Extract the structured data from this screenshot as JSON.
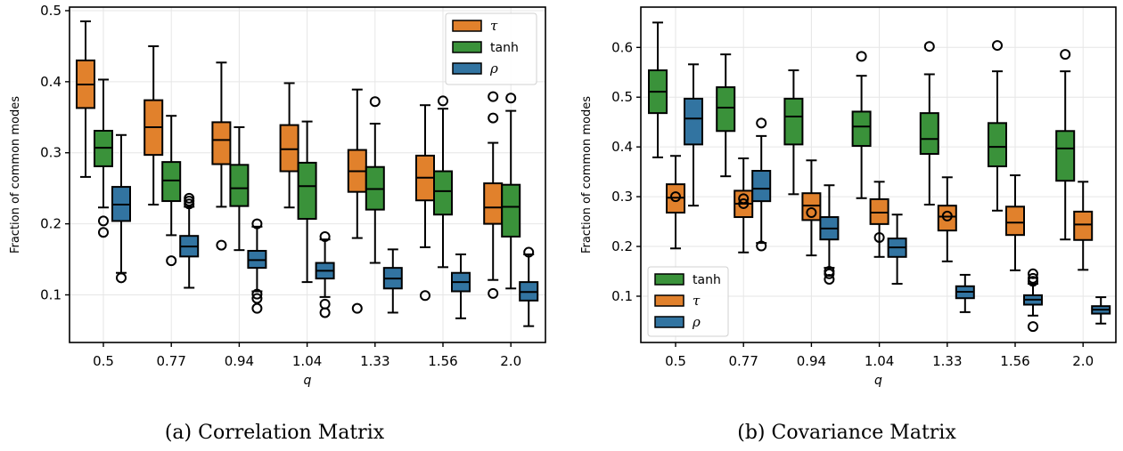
{
  "colors": {
    "tau": "#e1812c",
    "tanh": "#3a923a",
    "rho": "#3274a1",
    "grid": "#e6e6e6"
  },
  "chart_data": [
    {
      "type": "box",
      "title": "",
      "caption": "(a) Correlation Matrix",
      "xlabel": "q",
      "ylabel": "Fraction of common modes",
      "categories": [
        "0.5",
        "0.77",
        "0.94",
        "1.04",
        "1.33",
        "1.56",
        "2.0"
      ],
      "ylim": [
        0.033,
        0.505
      ],
      "yticks": [
        0.1,
        0.2,
        0.3,
        0.4,
        0.5
      ],
      "ytick_labels": [
        "0.1",
        "0.2",
        "0.3",
        "0.4",
        "0.5"
      ],
      "grid": true,
      "legend": {
        "placement": "top-right",
        "entries": [
          {
            "key": "tau",
            "label": "τ",
            "symbol": true
          },
          {
            "key": "tanh",
            "label": "tanh",
            "symbol": false
          },
          {
            "key": "rho",
            "label": "ρ",
            "symbol": true
          }
        ]
      },
      "series_order": [
        "tau",
        "tanh",
        "rho"
      ],
      "series": [
        {
          "name": "tau",
          "boxes": [
            {
              "whislo": 0.266,
              "q1": 0.363,
              "med": 0.396,
              "q3": 0.43,
              "whishi": 0.485,
              "fliers": []
            },
            {
              "whislo": 0.227,
              "q1": 0.297,
              "med": 0.336,
              "q3": 0.374,
              "whishi": 0.45,
              "fliers": []
            },
            {
              "whislo": 0.224,
              "q1": 0.284,
              "med": 0.318,
              "q3": 0.343,
              "whishi": 0.427,
              "fliers": [
                0.17
              ]
            },
            {
              "whislo": 0.223,
              "q1": 0.274,
              "med": 0.305,
              "q3": 0.339,
              "whishi": 0.398,
              "fliers": []
            },
            {
              "whislo": 0.18,
              "q1": 0.245,
              "med": 0.274,
              "q3": 0.304,
              "whishi": 0.389,
              "fliers": [
                0.081
              ]
            },
            {
              "whislo": 0.167,
              "q1": 0.233,
              "med": 0.265,
              "q3": 0.296,
              "whishi": 0.367,
              "fliers": [
                0.099
              ]
            },
            {
              "whislo": 0.121,
              "q1": 0.2,
              "med": 0.223,
              "q3": 0.257,
              "whishi": 0.314,
              "fliers": [
                0.379,
                0.349,
                0.102
              ]
            }
          ]
        },
        {
          "name": "tanh",
          "boxes": [
            {
              "whislo": 0.223,
              "q1": 0.281,
              "med": 0.307,
              "q3": 0.331,
              "whishi": 0.403,
              "fliers": [
                0.204,
                0.188
              ]
            },
            {
              "whislo": 0.184,
              "q1": 0.232,
              "med": 0.261,
              "q3": 0.287,
              "whishi": 0.352,
              "fliers": [
                0.148
              ]
            },
            {
              "whislo": 0.163,
              "q1": 0.225,
              "med": 0.25,
              "q3": 0.283,
              "whishi": 0.336,
              "fliers": []
            },
            {
              "whislo": 0.118,
              "q1": 0.207,
              "med": 0.253,
              "q3": 0.286,
              "whishi": 0.344,
              "fliers": []
            },
            {
              "whislo": 0.145,
              "q1": 0.22,
              "med": 0.249,
              "q3": 0.28,
              "whishi": 0.341,
              "fliers": [
                0.372
              ]
            },
            {
              "whislo": 0.139,
              "q1": 0.213,
              "med": 0.246,
              "q3": 0.274,
              "whishi": 0.362,
              "fliers": [
                0.373
              ]
            },
            {
              "whislo": 0.109,
              "q1": 0.182,
              "med": 0.224,
              "q3": 0.255,
              "whishi": 0.359,
              "fliers": [
                0.377
              ]
            }
          ]
        },
        {
          "name": "rho",
          "boxes": [
            {
              "whislo": 0.131,
              "q1": 0.204,
              "med": 0.227,
              "q3": 0.252,
              "whishi": 0.325,
              "fliers": [
                0.124
              ]
            },
            {
              "whislo": 0.11,
              "q1": 0.154,
              "med": 0.168,
              "q3": 0.183,
              "whishi": 0.224,
              "fliers": [
                0.236,
                0.232,
                0.228
              ]
            },
            {
              "whislo": 0.105,
              "q1": 0.138,
              "med": 0.149,
              "q3": 0.162,
              "whishi": 0.196,
              "fliers": [
                0.2,
                0.101,
                0.095,
                0.081
              ]
            },
            {
              "whislo": 0.097,
              "q1": 0.123,
              "med": 0.134,
              "q3": 0.145,
              "whishi": 0.178,
              "fliers": [
                0.182,
                0.087,
                0.075
              ]
            },
            {
              "whislo": 0.075,
              "q1": 0.109,
              "med": 0.123,
              "q3": 0.138,
              "whishi": 0.164,
              "fliers": []
            },
            {
              "whislo": 0.067,
              "q1": 0.105,
              "med": 0.118,
              "q3": 0.131,
              "whishi": 0.157,
              "fliers": []
            },
            {
              "whislo": 0.056,
              "q1": 0.092,
              "med": 0.104,
              "q3": 0.118,
              "whishi": 0.157,
              "fliers": [
                0.16
              ]
            }
          ]
        }
      ]
    },
    {
      "type": "box",
      "title": "",
      "caption": "(b) Covariance Matrix",
      "xlabel": "q",
      "ylabel": "Fraction of common modes",
      "categories": [
        "0.5",
        "0.77",
        "0.94",
        "1.04",
        "1.33",
        "1.56",
        "2.0"
      ],
      "ylim": [
        0.007,
        0.681
      ],
      "yticks": [
        0.1,
        0.2,
        0.3,
        0.4,
        0.5,
        0.6
      ],
      "ytick_labels": [
        "0.1",
        "0.2",
        "0.3",
        "0.4",
        "0.5",
        "0.6"
      ],
      "grid": true,
      "legend": {
        "placement": "bottom-left",
        "entries": [
          {
            "key": "tanh",
            "label": "tanh",
            "symbol": false
          },
          {
            "key": "tau",
            "label": "τ",
            "symbol": true
          },
          {
            "key": "rho",
            "label": "ρ",
            "symbol": true
          }
        ]
      },
      "series_order": [
        "tanh",
        "tau",
        "rho"
      ],
      "series": [
        {
          "name": "tanh",
          "boxes": [
            {
              "whislo": 0.379,
              "q1": 0.468,
              "med": 0.511,
              "q3": 0.554,
              "whishi": 0.65,
              "fliers": []
            },
            {
              "whislo": 0.341,
              "q1": 0.432,
              "med": 0.479,
              "q3": 0.52,
              "whishi": 0.586,
              "fliers": []
            },
            {
              "whislo": 0.305,
              "q1": 0.405,
              "med": 0.461,
              "q3": 0.497,
              "whishi": 0.554,
              "fliers": []
            },
            {
              "whislo": 0.297,
              "q1": 0.402,
              "med": 0.441,
              "q3": 0.471,
              "whishi": 0.543,
              "fliers": [
                0.582
              ]
            },
            {
              "whislo": 0.284,
              "q1": 0.386,
              "med": 0.416,
              "q3": 0.468,
              "whishi": 0.546,
              "fliers": [
                0.602
              ]
            },
            {
              "whislo": 0.272,
              "q1": 0.361,
              "med": 0.4,
              "q3": 0.448,
              "whishi": 0.552,
              "fliers": [
                0.604
              ]
            },
            {
              "whislo": 0.214,
              "q1": 0.332,
              "med": 0.397,
              "q3": 0.432,
              "whishi": 0.552,
              "fliers": [
                0.586
              ]
            }
          ]
        },
        {
          "name": "tau",
          "boxes": [
            {
              "whislo": 0.196,
              "q1": 0.268,
              "med": 0.298,
              "q3": 0.325,
              "whishi": 0.382,
              "fliers": [
                0.3
              ]
            },
            {
              "whislo": 0.188,
              "q1": 0.259,
              "med": 0.286,
              "q3": 0.312,
              "whishi": 0.377,
              "fliers": [
                0.296,
                0.286
              ]
            },
            {
              "whislo": 0.182,
              "q1": 0.253,
              "med": 0.282,
              "q3": 0.307,
              "whishi": 0.373,
              "fliers": [
                0.268
              ]
            },
            {
              "whislo": 0.179,
              "q1": 0.245,
              "med": 0.268,
              "q3": 0.295,
              "whishi": 0.33,
              "fliers": [
                0.218
              ]
            },
            {
              "whislo": 0.17,
              "q1": 0.232,
              "med": 0.26,
              "q3": 0.282,
              "whishi": 0.339,
              "fliers": [
                0.261
              ]
            },
            {
              "whislo": 0.152,
              "q1": 0.223,
              "med": 0.248,
              "q3": 0.28,
              "whishi": 0.343,
              "fliers": []
            },
            {
              "whislo": 0.153,
              "q1": 0.213,
              "med": 0.244,
              "q3": 0.27,
              "whishi": 0.33,
              "fliers": []
            }
          ]
        },
        {
          "name": "rho",
          "boxes": [
            {
              "whislo": 0.282,
              "q1": 0.405,
              "med": 0.457,
              "q3": 0.497,
              "whishi": 0.566,
              "fliers": []
            },
            {
              "whislo": 0.207,
              "q1": 0.291,
              "med": 0.316,
              "q3": 0.352,
              "whishi": 0.422,
              "fliers": [
                0.448,
                0.201
              ]
            },
            {
              "whislo": 0.157,
              "q1": 0.214,
              "med": 0.236,
              "q3": 0.259,
              "whishi": 0.323,
              "fliers": [
                0.15,
                0.145,
                0.134
              ]
            },
            {
              "whislo": 0.125,
              "q1": 0.179,
              "med": 0.198,
              "q3": 0.216,
              "whishi": 0.264,
              "fliers": []
            },
            {
              "whislo": 0.068,
              "q1": 0.096,
              "med": 0.109,
              "q3": 0.12,
              "whishi": 0.143,
              "fliers": []
            },
            {
              "whislo": 0.061,
              "q1": 0.083,
              "med": 0.093,
              "q3": 0.102,
              "whishi": 0.125,
              "fliers": [
                0.145,
                0.136,
                0.13,
                0.039
              ]
            },
            {
              "whislo": 0.045,
              "q1": 0.065,
              "med": 0.073,
              "q3": 0.08,
              "whishi": 0.098,
              "fliers": []
            }
          ]
        }
      ]
    }
  ]
}
